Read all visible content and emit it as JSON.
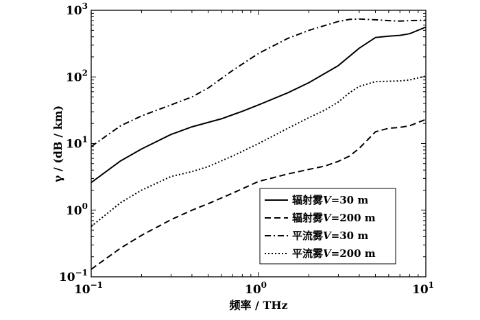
{
  "chart_data": {
    "type": "line",
    "xscale": "log",
    "yscale": "log",
    "xlim": [
      0.1,
      10
    ],
    "ylim": [
      0.1,
      1000
    ],
    "xlabel": "频率 / THz",
    "ylabel": "γ / (dB / km)",
    "grid": false,
    "legend_position": "bottom-right",
    "x_ticks": [
      {
        "base": "10",
        "exp": "−1"
      },
      {
        "base": "10",
        "exp": "0"
      },
      {
        "base": "10",
        "exp": "1"
      }
    ],
    "y_ticks": [
      {
        "base": "10",
        "exp": "−1"
      },
      {
        "base": "10",
        "exp": "0"
      },
      {
        "base": "10",
        "exp": "1"
      },
      {
        "base": "10",
        "exp": "2"
      },
      {
        "base": "10",
        "exp": "3"
      }
    ],
    "series": [
      {
        "name": "辐射雾V=30 m",
        "legend_prefix": "辐射雾",
        "legend_var": "V",
        "legend_value": "=30 m",
        "dash": "solid",
        "x": [
          0.1,
          0.15,
          0.2,
          0.3,
          0.4,
          0.5,
          0.6,
          0.7,
          0.8,
          1.0,
          1.5,
          2.0,
          3.0,
          4.0,
          5.0,
          6.0,
          7.0,
          8.0,
          10.0
        ],
        "y": [
          2.6,
          5.5,
          8.3,
          13.7,
          17.8,
          20.8,
          23.5,
          27.0,
          30.5,
          38.0,
          58.0,
          82.0,
          148,
          270,
          390,
          410,
          420,
          445,
          560
        ]
      },
      {
        "name": "辐射雾V=200 m",
        "legend_prefix": "辐射雾",
        "legend_var": "V",
        "legend_value": "=200 m",
        "dash": "long",
        "x": [
          0.1,
          0.15,
          0.2,
          0.3,
          0.4,
          0.5,
          0.7,
          1.0,
          1.5,
          2.0,
          2.5,
          3.0,
          3.5,
          4.0,
          5.0,
          6.0,
          7.0,
          8.0,
          10.0
        ],
        "y": [
          0.13,
          0.27,
          0.42,
          0.72,
          1.0,
          1.25,
          1.8,
          2.7,
          3.5,
          4.1,
          4.6,
          5.4,
          6.5,
          8.5,
          15.0,
          17.0,
          17.5,
          18.5,
          23.0
        ]
      },
      {
        "name": "平流雾V=30 m",
        "legend_prefix": "平流雾",
        "legend_var": "V",
        "legend_value": "=30 m",
        "dash": "dashdot",
        "x": [
          0.1,
          0.15,
          0.2,
          0.3,
          0.4,
          0.5,
          0.7,
          1.0,
          1.5,
          2.0,
          3.0,
          3.5,
          4.0,
          5.0,
          6.0,
          7.0,
          8.0,
          10.0
        ],
        "y": [
          9.0,
          18.5,
          26.0,
          38.0,
          50.0,
          68.0,
          125.0,
          225.0,
          380.0,
          500.0,
          680.0,
          730.0,
          740.0,
          720.0,
          700.0,
          690.0,
          700.0,
          710.0
        ]
      },
      {
        "name": "平流雾V=200 m",
        "legend_prefix": "平流雾",
        "legend_var": "V",
        "legend_value": "=200 m",
        "dash": "dot",
        "x": [
          0.1,
          0.15,
          0.2,
          0.3,
          0.4,
          0.5,
          0.7,
          1.0,
          1.5,
          2.0,
          2.5,
          3.0,
          3.5,
          4.0,
          5.0,
          6.0,
          7.0,
          8.0,
          10.0
        ],
        "y": [
          0.57,
          1.3,
          2.0,
          3.2,
          3.8,
          4.5,
          6.5,
          10.0,
          17.0,
          24.5,
          32.0,
          42.0,
          58.0,
          72.0,
          85.0,
          86.0,
          87.0,
          90.0,
          103.0
        ]
      }
    ]
  }
}
